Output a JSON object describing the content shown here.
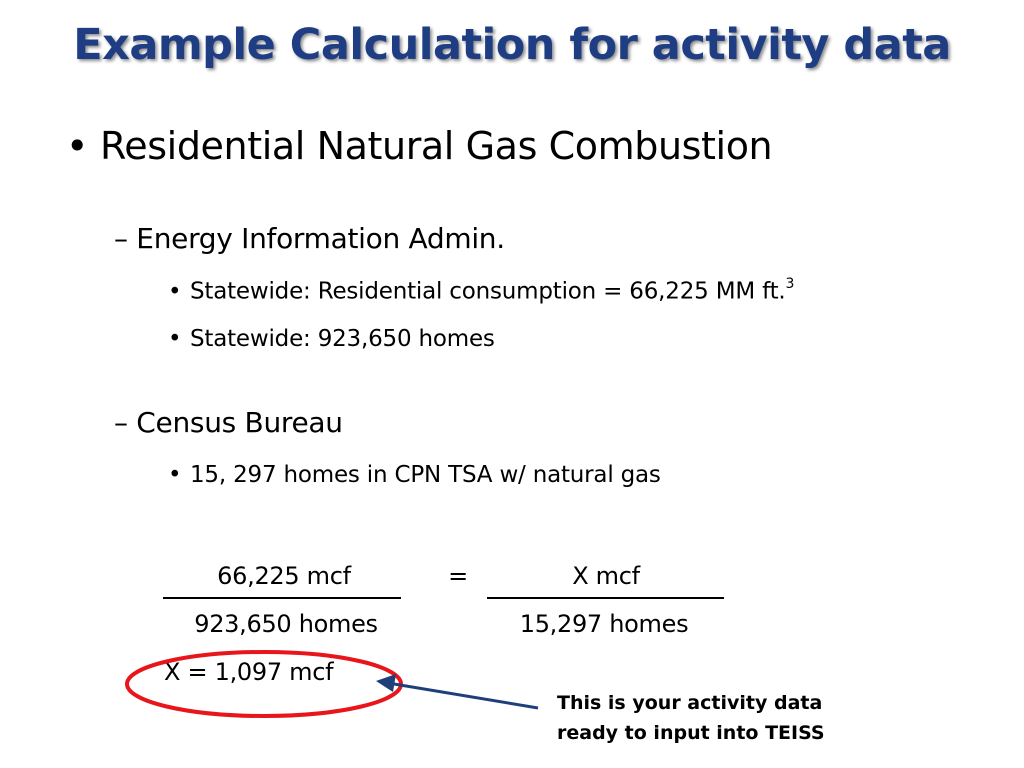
{
  "slide": {
    "title": "Example Calculation for activity data",
    "bullet_main": "Residential Natural Gas Combustion",
    "sections": [
      {
        "heading": "– Energy Information Admin.",
        "items": [
          {
            "text": "Statewide:  Residential consumption = 66,225 MM ft.",
            "superscript": "3"
          },
          {
            "text": "Statewide:  923,650 homes"
          }
        ]
      },
      {
        "heading": "– Census Bureau",
        "items": [
          {
            "text": "15, 297 homes in CPN TSA w/ natural gas"
          }
        ]
      }
    ],
    "equation": {
      "left_numerator": "66,225 mcf",
      "left_denominator": "923,650 homes",
      "equals": "=",
      "right_numerator": "X mcf",
      "right_denominator": "15,297 homes",
      "result": "X = 1,097 mcf"
    },
    "note": {
      "line1": "This is your activity data",
      "line2": "ready to input into TEISS"
    },
    "bullet_glyph": "•",
    "colors": {
      "title": "#1f3d82",
      "highlight_ellipse": "#e8151b",
      "arrow": "#1f3f7a"
    }
  }
}
